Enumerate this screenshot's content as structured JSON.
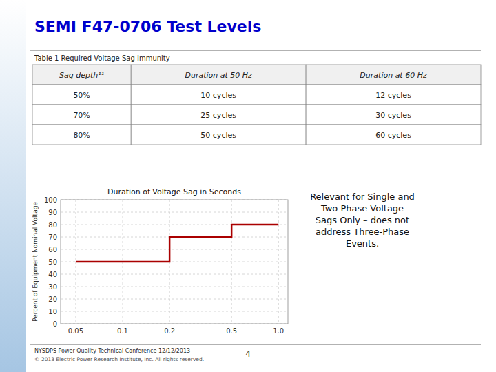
{
  "page_title": "SEMI F47-0706 Test Levels",
  "title_color": "#0000CC",
  "table": {
    "title": "Table 1  Required Voltage Sag Immunity",
    "headers": [
      "Sag depth¹¹",
      "Duration at 50 Hz",
      "Duration at 60 Hz"
    ],
    "rows": [
      [
        "50%",
        "10 cycles",
        "12 cycles"
      ],
      [
        "70%",
        "25 cycles",
        "30 cycles"
      ],
      [
        "80%",
        "50 cycles",
        "60 cycles"
      ]
    ]
  },
  "chart_data": {
    "type": "line",
    "title": "Duration of Voltage Sag in Seconds",
    "y_label": "Percent of Equipment Nominal Voltage",
    "x": [
      0.05,
      0.2,
      0.2,
      0.5,
      0.5,
      1.0
    ],
    "values": [
      50,
      50,
      70,
      70,
      80,
      80
    ],
    "color": "#AA0000",
    "log": "x",
    "xlim": [
      0.04,
      1.15
    ],
    "xticks": [
      0.05,
      0.1,
      0.2,
      0.5,
      {
        "value": 1.0,
        "label": "1.0"
      }
    ],
    "ylim": [
      0,
      100
    ],
    "yticks": [
      0,
      10,
      20,
      30,
      40,
      50,
      60,
      70,
      80,
      90,
      100
    ],
    "grid": true
  },
  "annotation": "Relevant for Single and\nTwo Phase Voltage\nSags Only – does not\naddress Three-Phase\nEvents.",
  "footer": [
    "NYSDPS Power Quality Technical Conference  12/12/2013",
    "© 2013 Electric Power Research Institute, Inc.  All rights reserved."
  ],
  "page_number": "4"
}
